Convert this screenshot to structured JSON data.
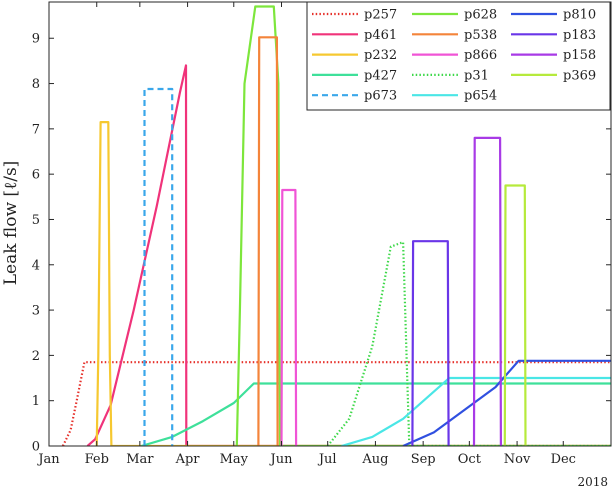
{
  "chart_data": {
    "type": "line",
    "ylabel": "Leak flow [ℓ/s]",
    "xlabel": "",
    "year_label": "2018",
    "xlim": [
      0,
      365
    ],
    "ylim": [
      0,
      9.8
    ],
    "yticks": [
      0,
      1,
      2,
      3,
      4,
      5,
      6,
      7,
      8,
      9
    ],
    "xticks": [
      {
        "label": "Jan",
        "day": 0
      },
      {
        "label": "Feb",
        "day": 31
      },
      {
        "label": "Mar",
        "day": 59
      },
      {
        "label": "Apr",
        "day": 90
      },
      {
        "label": "May",
        "day": 120
      },
      {
        "label": "Jun",
        "day": 151
      },
      {
        "label": "Jul",
        "day": 181
      },
      {
        "label": "Aug",
        "day": 212
      },
      {
        "label": "Sep",
        "day": 243
      },
      {
        "label": "Oct",
        "day": 273
      },
      {
        "label": "Nov",
        "day": 304
      },
      {
        "label": "Dec",
        "day": 334
      }
    ],
    "grid": false,
    "legend_position": "top-right",
    "series": [
      {
        "name": "p257",
        "color": "#e6302a",
        "dash": "dotted",
        "x": [
          9,
          14,
          18,
          23,
          365
        ],
        "y": [
          0,
          0.35,
          1.0,
          1.85,
          1.85
        ]
      },
      {
        "name": "p461",
        "color": "#f0337a",
        "dash": "solid",
        "x": [
          25,
          30,
          40,
          55,
          70,
          85,
          89,
          89.2,
          365
        ],
        "y": [
          0,
          0.15,
          0.9,
          3.0,
          5.3,
          7.8,
          8.4,
          0,
          0
        ]
      },
      {
        "name": "p232",
        "color": "#f6c830",
        "dash": "solid",
        "x": [
          31,
          32,
          33.5,
          38.5,
          39.5,
          40.5,
          365
        ],
        "y": [
          0,
          2.0,
          7.15,
          7.15,
          2.0,
          0,
          0
        ]
      },
      {
        "name": "p427",
        "color": "#3ee09a",
        "dash": "solid",
        "x": [
          60,
          80,
          100,
          120,
          133,
          365
        ],
        "y": [
          0,
          0.2,
          0.55,
          0.95,
          1.38,
          1.38
        ]
      },
      {
        "name": "p673",
        "color": "#3aa7ea",
        "dash": "dashed",
        "x": [
          62,
          62,
          80,
          80
        ],
        "y": [
          0,
          7.88,
          7.88,
          0
        ]
      },
      {
        "name": "p628",
        "color": "#7de63c",
        "dash": "solid",
        "x": [
          122,
          124,
          127,
          134,
          146,
          149,
          150,
          365
        ],
        "y": [
          0,
          3.0,
          8.0,
          9.7,
          9.7,
          8.0,
          0,
          0
        ]
      },
      {
        "name": "p538",
        "color": "#f4843a",
        "dash": "solid",
        "x": [
          136,
          136.5,
          148,
          148.5
        ],
        "y": [
          0,
          9.02,
          9.02,
          0
        ]
      },
      {
        "name": "p866",
        "color": "#f054d6",
        "dash": "solid",
        "x": [
          151,
          151.5,
          160,
          160.5
        ],
        "y": [
          0,
          5.65,
          5.65,
          0
        ]
      },
      {
        "name": "p31",
        "color": "#3ed84a",
        "dash": "dotted",
        "x": [
          181,
          195,
          210,
          222,
          230,
          234,
          365
        ],
        "y": [
          0,
          0.6,
          2.2,
          4.4,
          4.5,
          0,
          0
        ]
      },
      {
        "name": "p654",
        "color": "#4ae6e6",
        "dash": "solid",
        "x": [
          190,
          210,
          230,
          250,
          260,
          365
        ],
        "y": [
          0,
          0.2,
          0.6,
          1.2,
          1.5,
          1.5
        ]
      },
      {
        "name": "p810",
        "color": "#3050e0",
        "dash": "solid",
        "x": [
          230,
          250,
          270,
          290,
          305,
          365
        ],
        "y": [
          0,
          0.3,
          0.8,
          1.3,
          1.88,
          1.88
        ]
      },
      {
        "name": "p183",
        "color": "#6a36e8",
        "dash": "solid",
        "x": [
          236,
          236.5,
          259,
          259.5
        ],
        "y": [
          0,
          4.52,
          4.52,
          0
        ]
      },
      {
        "name": "p158",
        "color": "#a83ae6",
        "dash": "solid",
        "x": [
          276,
          276.5,
          293,
          293.5
        ],
        "y": [
          0,
          6.8,
          6.8,
          0
        ]
      },
      {
        "name": "p369",
        "color": "#b6ea3c",
        "dash": "solid",
        "x": [
          296,
          296.5,
          309,
          309.5
        ],
        "y": [
          0,
          5.75,
          5.75,
          0
        ]
      }
    ]
  }
}
